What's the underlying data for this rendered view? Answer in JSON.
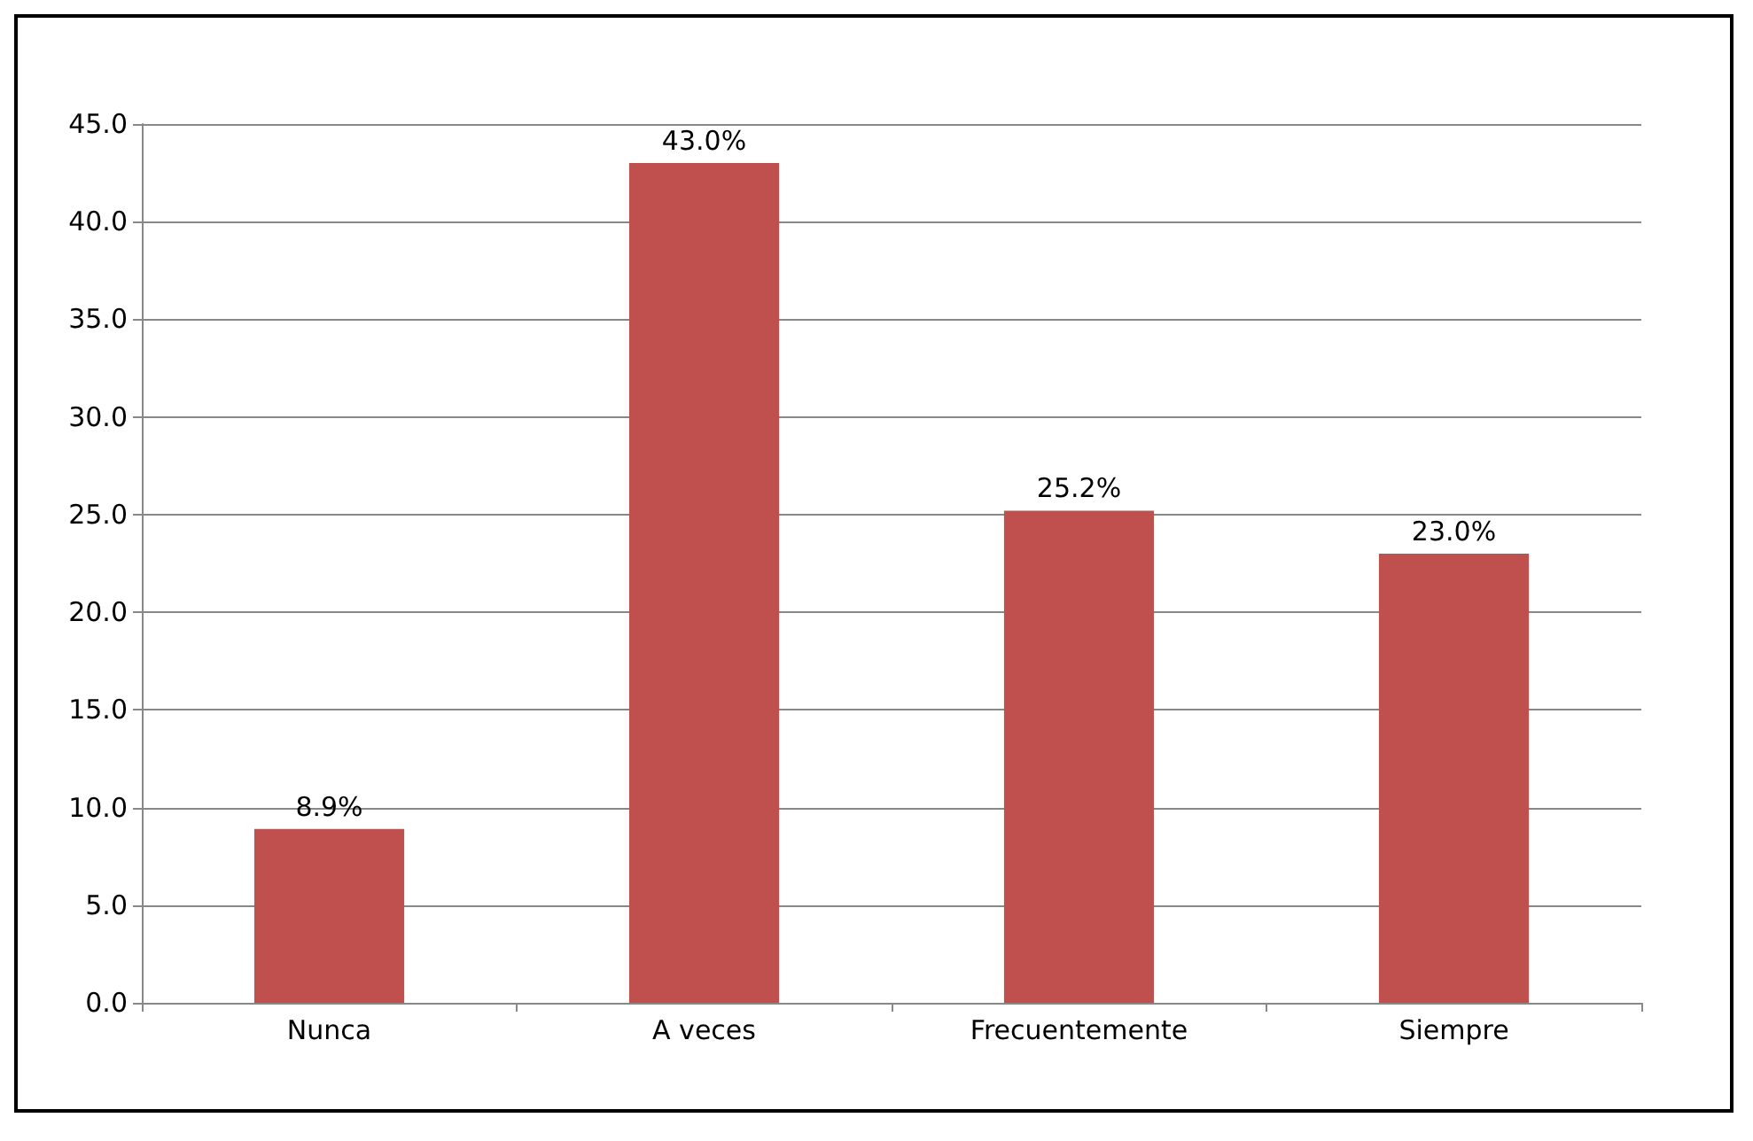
{
  "chart_data": {
    "type": "bar",
    "categories": [
      "Nunca",
      "A veces",
      "Frecuentemente",
      "Siempre"
    ],
    "values": [
      8.9,
      43.0,
      25.2,
      23.0
    ],
    "value_labels": [
      "8.9%",
      "43.0%",
      "25.2%",
      "23.0%"
    ],
    "color": "#c0504d",
    "ylim": [
      0,
      45
    ],
    "yticks": [
      {
        "value": 0,
        "label": "0.0"
      },
      {
        "value": 5,
        "label": "5.0"
      },
      {
        "value": 10,
        "label": "10.0"
      },
      {
        "value": 15,
        "label": "15.0"
      },
      {
        "value": 20,
        "label": "20.0"
      },
      {
        "value": 25,
        "label": "25.0"
      },
      {
        "value": 30,
        "label": "30.0"
      },
      {
        "value": 35,
        "label": "35.0"
      },
      {
        "value": 40,
        "label": "40.0"
      },
      {
        "value": 45,
        "label": "45.0"
      }
    ],
    "grid": true
  }
}
